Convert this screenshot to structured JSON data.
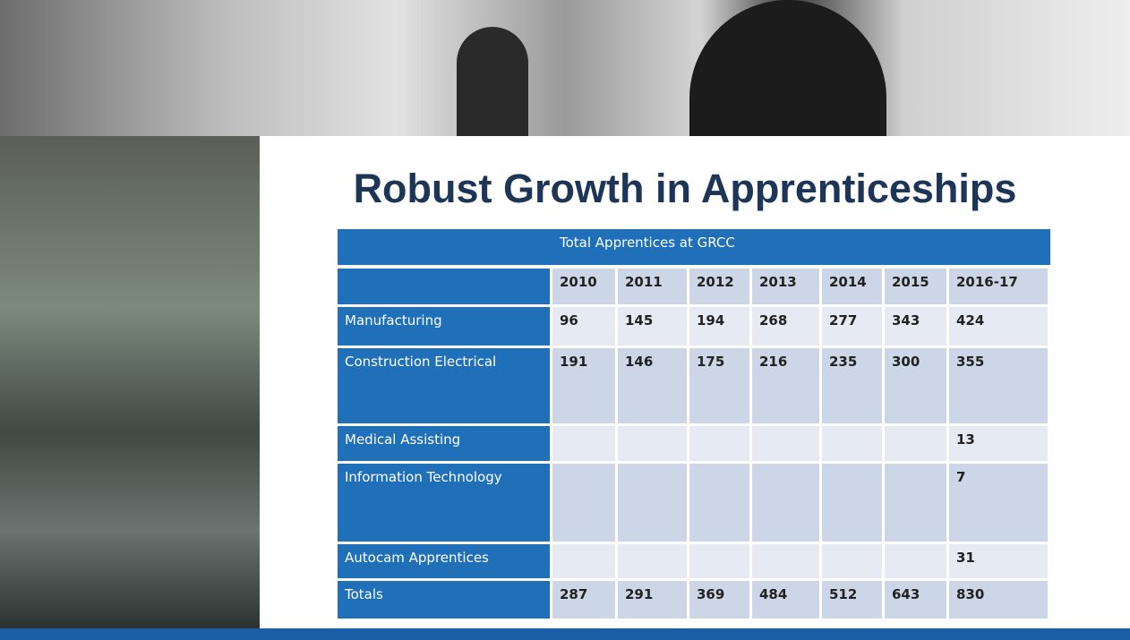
{
  "title": "Robust Growth in Apprenticeships",
  "table": {
    "caption": "Total Apprentices at GRCC",
    "columns": [
      "2010",
      "2011",
      "2012",
      "2013",
      "2014",
      "2015",
      "2016-17"
    ],
    "rows": [
      {
        "label": "Manufacturing",
        "values": [
          96,
          145,
          194,
          268,
          277,
          343,
          424
        ]
      },
      {
        "label": "Construction Electrical",
        "values": [
          191,
          146,
          175,
          216,
          235,
          300,
          355
        ]
      },
      {
        "label": "Medical Assisting",
        "values": [
          null,
          null,
          null,
          null,
          null,
          null,
          13
        ]
      },
      {
        "label": "Information Technology",
        "values": [
          null,
          null,
          null,
          null,
          null,
          null,
          7
        ]
      },
      {
        "label": "Autocam Apprentices",
        "values": [
          null,
          null,
          null,
          null,
          null,
          null,
          31
        ]
      },
      {
        "label": "Totals",
        "values": [
          287,
          291,
          369,
          484,
          512,
          643,
          830
        ]
      }
    ]
  }
}
